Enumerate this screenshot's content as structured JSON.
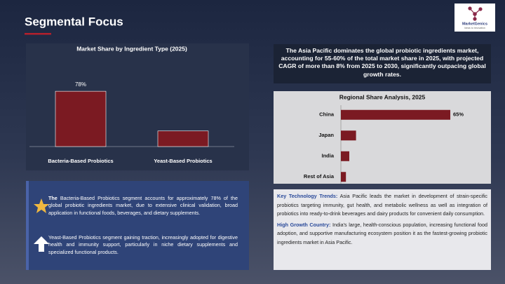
{
  "header": {
    "title": "Segmental Focus",
    "logo": "MarketGenics",
    "logo_tagline": "Ideas to Innovation"
  },
  "chart_data": [
    {
      "type": "bar",
      "title": "Market Share by Ingredient Type (2025)",
      "categories": [
        "Bacteria-Based Probiotics",
        "Yeast-Based Probiotics"
      ],
      "values": [
        78,
        22
      ],
      "value_labels": [
        "78%",
        null
      ],
      "color": "#7b1a22",
      "ylim": [
        0,
        90
      ]
    },
    {
      "type": "barh",
      "title": "Regional Share Analysis, 2025",
      "categories": [
        "China",
        "Japan",
        "India",
        "Rest of Asia"
      ],
      "values": [
        65,
        9,
        5,
        3
      ],
      "value_labels": [
        "65%",
        null,
        null,
        null
      ],
      "color": "#7b1a22",
      "xlim": [
        0,
        70
      ]
    }
  ],
  "highlight": "The Asia Pacific dominates the global probiotic ingredients market, accounting for 55-60% of the total market share in 2025, with projected CAGR of more than 8% from 2025 to 2030, significantly outpacing global growth rates.",
  "segment_notes": [
    {
      "lead": "The",
      "text": "Bacteria-Based Probiotics segment accounts for approximately 78% of the global probiotic ingredients market, due to extensive clinical validation, broad application in functional foods, beverages, and dietary supplements."
    },
    {
      "text": "Yeast-Based Probiotics segment gaining traction, increasingly adopted for digestive health and immunity support, particularly in niche dietary supplements and specialized functional products."
    }
  ],
  "regional_notes": [
    {
      "label": "Key Technology Trends:",
      "text": "Asia Pacific leads the market in development of strain-specific probiotics targeting immunity, gut health, and metabolic wellness as well as integration of probiotics into ready-to-drink beverages and dairy products for convenient daily consumption."
    },
    {
      "label": "High Growth Country:",
      "text": "India's large, health-conscious population, increasing functional food adoption, and supportive manufacturing ecosystem position it as the fastest-growing probiotic ingredients market in Asia Pacific."
    }
  ]
}
